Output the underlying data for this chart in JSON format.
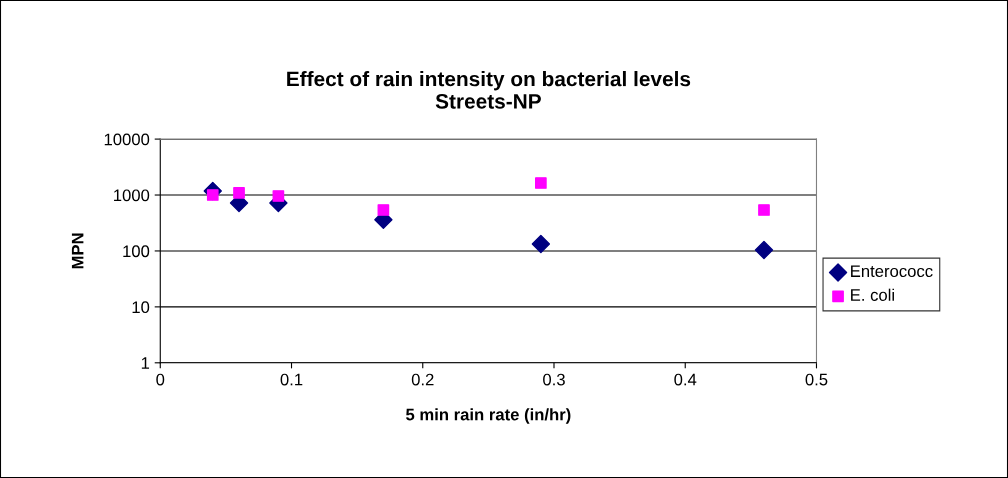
{
  "chart_data": {
    "type": "scatter",
    "title": "Effect of rain intensity on bacterial levels\nStreets-NP",
    "xlabel": "5 min rain rate (in/hr)",
    "ylabel": "MPN",
    "series": [
      {
        "name": "Enterococc",
        "color": "#000080",
        "marker": "diamond",
        "x": [
          0.04,
          0.06,
          0.09,
          0.17,
          0.29,
          0.46
        ],
        "values": [
          1180,
          720,
          720,
          360,
          133,
          104
        ]
      },
      {
        "name": "E. coli",
        "color": "#ff00ff",
        "marker": "square",
        "x": [
          0.04,
          0.06,
          0.09,
          0.17,
          0.29,
          0.46
        ],
        "values": [
          1000,
          1090,
          960,
          540,
          1640,
          540
        ]
      }
    ],
    "log": "y",
    "xlim": [
      0,
      0.5
    ],
    "xticks": [
      0,
      0.1,
      0.2,
      0.3,
      0.4,
      0.5
    ],
    "ylim": [
      1,
      10000
    ],
    "yticks": [
      1,
      10,
      100,
      1000,
      10000
    ],
    "grid": "y",
    "legend": "right"
  }
}
